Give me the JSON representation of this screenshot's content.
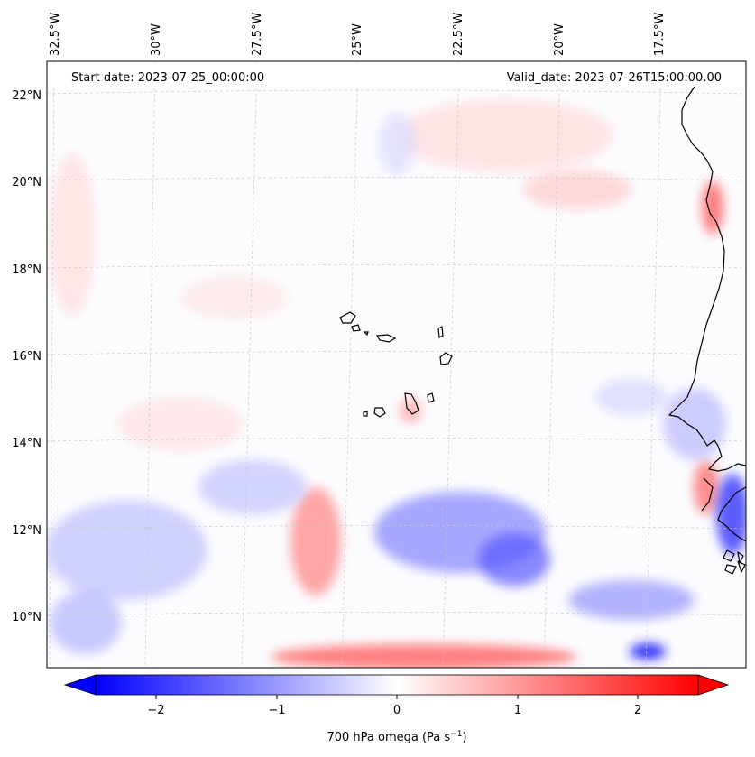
{
  "map": {
    "start_label": "Start date: 2023-07-25_00:00:00",
    "valid_label": "Valid_date: 2023-07-26T15:00:00.00",
    "lon_labels": [
      "32.5°W",
      "30°W",
      "27.5°W",
      "25°W",
      "22.5°W",
      "20°W",
      "17.5°W"
    ],
    "lat_labels": [
      "22°N",
      "20°N",
      "18°N",
      "16°N",
      "14°N",
      "12°N",
      "10°N"
    ],
    "coastline_color": "#000000",
    "gridline_color": "#c8c8c8",
    "features": [
      "cabo-verde-islands",
      "west-africa-coastline"
    ]
  },
  "colorbar": {
    "label_main": "700 hPa omega (Pa s",
    "label_sup": "−1",
    "label_close": ")",
    "ticks": [
      "−2",
      "−1",
      "0",
      "1",
      "2"
    ],
    "min": -2.6,
    "max": 2.6,
    "colors": {
      "negative": "#0000ff",
      "zero": "#ffffff",
      "positive": "#ff0000"
    }
  }
}
